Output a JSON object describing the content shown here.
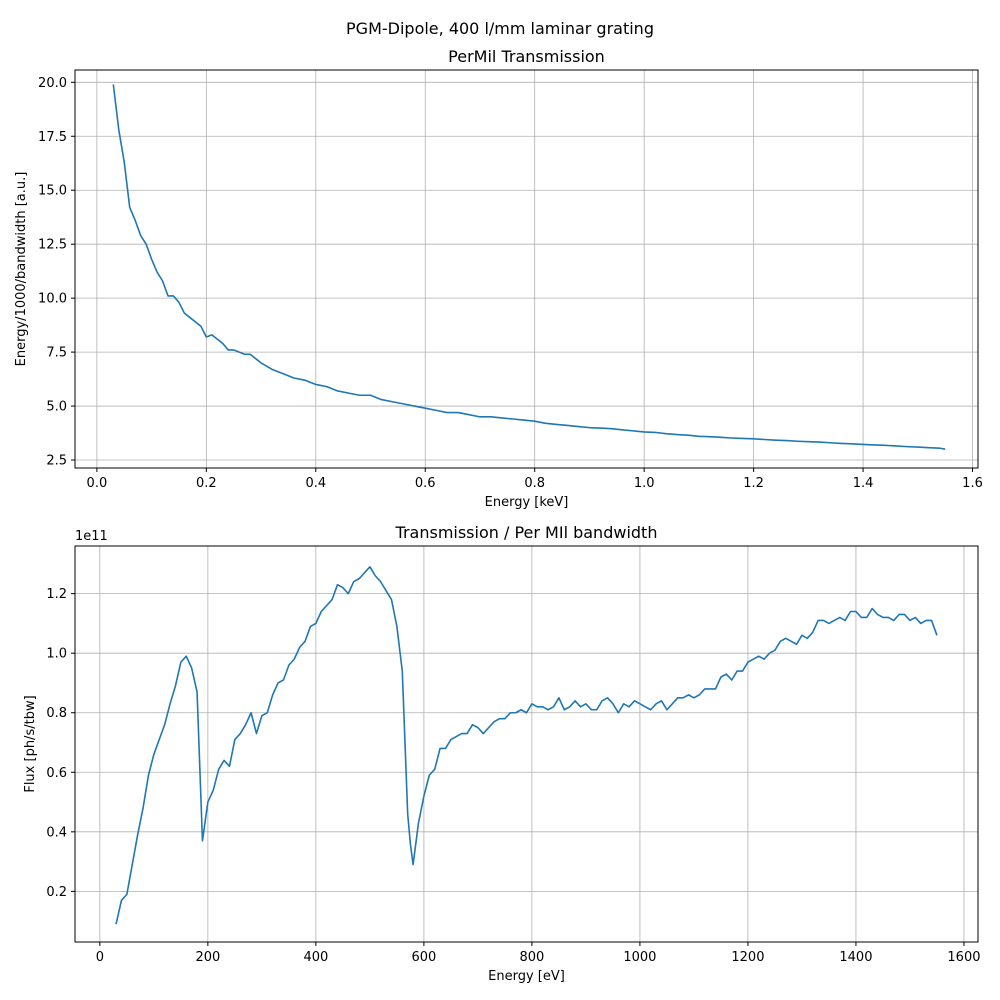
{
  "figure": {
    "suptitle": "PGM-Dipole, 400 l/mm laminar grating"
  },
  "chart_data": [
    {
      "type": "line",
      "title": "PerMil Transmission",
      "xlabel": "Energy [keV]",
      "ylabel": "Energy/1000/bandwidth [a.u.]",
      "xlim": [
        -0.04,
        1.61
      ],
      "ylim": [
        2.13,
        20.57
      ],
      "xticks": [
        0.0,
        0.2,
        0.4,
        0.6,
        0.8,
        1.0,
        1.2,
        1.4,
        1.6
      ],
      "xtick_labels": [
        "0.0",
        "0.2",
        "0.4",
        "0.6",
        "0.8",
        "1.0",
        "1.2",
        "1.4",
        "1.6"
      ],
      "yticks": [
        2.5,
        5.0,
        7.5,
        10.0,
        12.5,
        15.0,
        17.5,
        20.0
      ],
      "ytick_labels": [
        "2.5",
        "5.0",
        "7.5",
        "10.0",
        "12.5",
        "15.0",
        "17.5",
        "20.0"
      ],
      "grid": true,
      "color": "#1f77b4",
      "series": [
        {
          "x": [
            0.03,
            0.04,
            0.05,
            0.06,
            0.07,
            0.08,
            0.09,
            0.1,
            0.11,
            0.12,
            0.13,
            0.14,
            0.15,
            0.16,
            0.17,
            0.18,
            0.19,
            0.2,
            0.21,
            0.22,
            0.23,
            0.24,
            0.25,
            0.26,
            0.27,
            0.28,
            0.3,
            0.32,
            0.34,
            0.36,
            0.38,
            0.4,
            0.42,
            0.44,
            0.46,
            0.48,
            0.5,
            0.52,
            0.54,
            0.56,
            0.58,
            0.6,
            0.62,
            0.64,
            0.66,
            0.68,
            0.7,
            0.72,
            0.74,
            0.76,
            0.78,
            0.8,
            0.82,
            0.84,
            0.86,
            0.88,
            0.9,
            0.92,
            0.94,
            0.96,
            0.98,
            1.0,
            1.02,
            1.04,
            1.06,
            1.08,
            1.1,
            1.12,
            1.14,
            1.16,
            1.18,
            1.2,
            1.22,
            1.24,
            1.26,
            1.28,
            1.3,
            1.32,
            1.34,
            1.36,
            1.38,
            1.4,
            1.42,
            1.44,
            1.46,
            1.48,
            1.5,
            1.52,
            1.54,
            1.55
          ],
          "y": [
            19.9,
            17.8,
            16.3,
            14.2,
            13.6,
            12.9,
            12.5,
            11.8,
            11.2,
            10.8,
            10.1,
            10.1,
            9.8,
            9.3,
            9.1,
            8.9,
            8.7,
            8.2,
            8.3,
            8.1,
            7.9,
            7.6,
            7.6,
            7.5,
            7.4,
            7.4,
            7.0,
            6.7,
            6.5,
            6.3,
            6.2,
            6.0,
            5.9,
            5.7,
            5.6,
            5.5,
            5.5,
            5.3,
            5.2,
            5.1,
            5.0,
            4.9,
            4.8,
            4.7,
            4.7,
            4.6,
            4.5,
            4.5,
            4.45,
            4.4,
            4.35,
            4.3,
            4.2,
            4.15,
            4.1,
            4.05,
            4.0,
            3.98,
            3.95,
            3.9,
            3.85,
            3.8,
            3.78,
            3.72,
            3.68,
            3.65,
            3.6,
            3.58,
            3.55,
            3.52,
            3.5,
            3.48,
            3.45,
            3.42,
            3.4,
            3.37,
            3.35,
            3.33,
            3.3,
            3.27,
            3.25,
            3.22,
            3.2,
            3.18,
            3.15,
            3.12,
            3.1,
            3.07,
            3.05,
            3.0
          ]
        }
      ]
    },
    {
      "type": "line",
      "title": "Transmission / Per MIl bandwidth",
      "xlabel": "Energy [eV]",
      "ylabel": "Flux [ph/s/tbw]",
      "offset_text": "1e11",
      "xlim": [
        -46,
        1626
      ],
      "ylim": [
        0.03,
        1.36
      ],
      "xticks": [
        0,
        200,
        400,
        600,
        800,
        1000,
        1200,
        1400,
        1600
      ],
      "xtick_labels": [
        "0",
        "200",
        "400",
        "600",
        "800",
        "1000",
        "1200",
        "1400",
        "1600"
      ],
      "yticks": [
        0.2,
        0.4,
        0.6,
        0.8,
        1.0,
        1.2
      ],
      "ytick_labels": [
        "0.2",
        "0.4",
        "0.6",
        "0.8",
        "1.0",
        "1.2"
      ],
      "grid": true,
      "color": "#1f77b4",
      "series": [
        {
          "x": [
            30,
            40,
            50,
            60,
            70,
            80,
            90,
            100,
            110,
            120,
            130,
            140,
            150,
            160,
            170,
            180,
            190,
            200,
            210,
            220,
            230,
            240,
            250,
            260,
            270,
            280,
            290,
            300,
            310,
            320,
            330,
            340,
            350,
            360,
            370,
            380,
            390,
            400,
            410,
            420,
            430,
            440,
            450,
            460,
            470,
            480,
            490,
            500,
            510,
            520,
            530,
            540,
            550,
            560,
            570,
            575,
            580,
            590,
            600,
            610,
            620,
            630,
            640,
            650,
            660,
            670,
            680,
            690,
            700,
            710,
            720,
            730,
            740,
            750,
            760,
            770,
            780,
            790,
            800,
            810,
            820,
            830,
            840,
            850,
            860,
            870,
            880,
            890,
            900,
            910,
            920,
            930,
            940,
            950,
            960,
            970,
            980,
            990,
            1000,
            1010,
            1020,
            1030,
            1040,
            1050,
            1060,
            1070,
            1080,
            1090,
            1100,
            1110,
            1120,
            1130,
            1140,
            1150,
            1160,
            1170,
            1180,
            1190,
            1200,
            1210,
            1220,
            1230,
            1240,
            1250,
            1260,
            1270,
            1280,
            1290,
            1300,
            1310,
            1320,
            1330,
            1340,
            1350,
            1360,
            1370,
            1380,
            1390,
            1400,
            1410,
            1420,
            1430,
            1440,
            1450,
            1460,
            1470,
            1480,
            1490,
            1500,
            1510,
            1520,
            1530,
            1540,
            1550
          ],
          "y": [
            0.09,
            0.17,
            0.19,
            0.29,
            0.39,
            0.48,
            0.59,
            0.66,
            0.71,
            0.76,
            0.83,
            0.89,
            0.97,
            0.99,
            0.95,
            0.87,
            0.37,
            0.5,
            0.54,
            0.61,
            0.64,
            0.62,
            0.71,
            0.73,
            0.76,
            0.8,
            0.73,
            0.79,
            0.8,
            0.86,
            0.9,
            0.91,
            0.96,
            0.98,
            1.02,
            1.04,
            1.09,
            1.1,
            1.14,
            1.16,
            1.18,
            1.23,
            1.22,
            1.2,
            1.24,
            1.25,
            1.27,
            1.29,
            1.26,
            1.24,
            1.21,
            1.18,
            1.09,
            0.94,
            0.46,
            0.36,
            0.29,
            0.43,
            0.52,
            0.59,
            0.61,
            0.68,
            0.68,
            0.71,
            0.72,
            0.73,
            0.73,
            0.76,
            0.75,
            0.73,
            0.75,
            0.77,
            0.78,
            0.78,
            0.8,
            0.8,
            0.81,
            0.8,
            0.83,
            0.82,
            0.82,
            0.81,
            0.82,
            0.85,
            0.81,
            0.82,
            0.84,
            0.82,
            0.83,
            0.81,
            0.81,
            0.84,
            0.85,
            0.83,
            0.8,
            0.83,
            0.82,
            0.84,
            0.83,
            0.82,
            0.81,
            0.83,
            0.84,
            0.81,
            0.83,
            0.85,
            0.85,
            0.86,
            0.85,
            0.86,
            0.88,
            0.88,
            0.88,
            0.92,
            0.93,
            0.91,
            0.94,
            0.94,
            0.97,
            0.98,
            0.99,
            0.98,
            1.0,
            1.01,
            1.04,
            1.05,
            1.04,
            1.03,
            1.06,
            1.05,
            1.07,
            1.11,
            1.11,
            1.1,
            1.11,
            1.12,
            1.11,
            1.14,
            1.14,
            1.12,
            1.12,
            1.15,
            1.13,
            1.12,
            1.12,
            1.11,
            1.13,
            1.13,
            1.11,
            1.12,
            1.1,
            1.11,
            1.11,
            1.06
          ]
        }
      ]
    }
  ]
}
